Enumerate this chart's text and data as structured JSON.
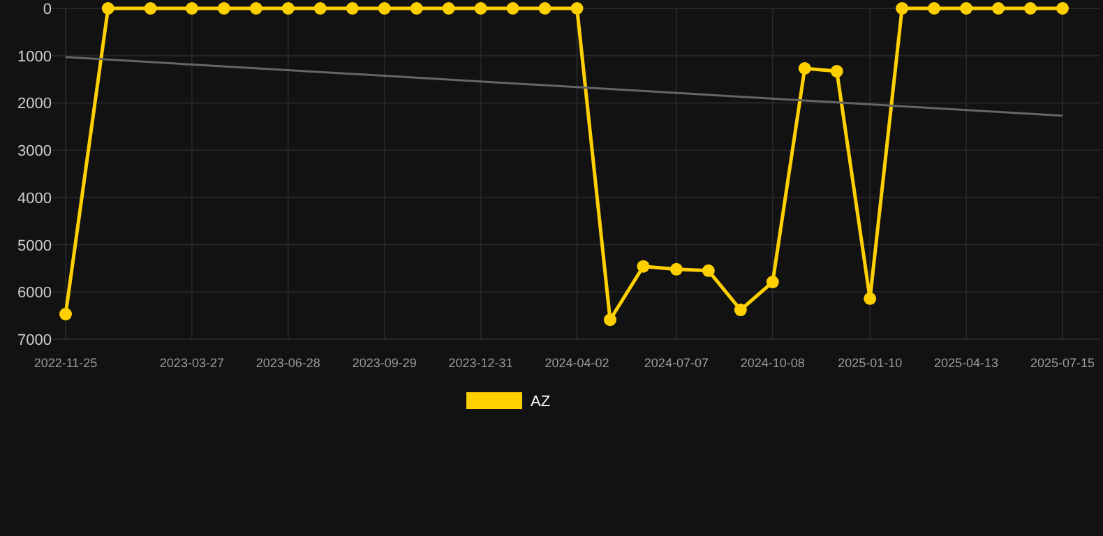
{
  "chart_data": {
    "type": "line",
    "x": [
      "2022-11-25",
      "2023-01-05",
      "2023-02-15",
      "2023-03-27",
      "2023-04-27",
      "2023-05-28",
      "2023-06-28",
      "2023-07-29",
      "2023-08-29",
      "2023-09-29",
      "2023-10-30",
      "2023-11-30",
      "2023-12-31",
      "2024-01-31",
      "2024-03-02",
      "2024-04-02",
      "2024-05-04",
      "2024-06-05",
      "2024-07-07",
      "2024-08-07",
      "2024-09-07",
      "2024-10-08",
      "2024-11-08",
      "2024-12-09",
      "2025-01-10",
      "2025-02-10",
      "2025-03-13",
      "2025-04-13",
      "2025-05-14",
      "2025-06-14",
      "2025-07-15"
    ],
    "series": [
      {
        "name": "AZ",
        "color": "#ffd000",
        "marker": "circle",
        "values": [
          6470,
          0,
          0,
          0,
          0,
          0,
          0,
          0,
          0,
          0,
          0,
          0,
          0,
          0,
          0,
          0,
          6590,
          5460,
          5520,
          5550,
          6380,
          5790,
          1270,
          1330,
          6140,
          0,
          0,
          0,
          0,
          0,
          0
        ]
      },
      {
        "color": "#666666",
        "marker": "none",
        "x": [
          "2022-11-25",
          "2025-07-15"
        ],
        "values": [
          1030,
          2270
        ]
      }
    ],
    "xlim": [
      "2022-11-25",
      "2025-07-15"
    ],
    "xticks": [
      "2022-11-25",
      "2023-03-27",
      "2023-06-28",
      "2023-09-29",
      "2023-12-31",
      "2024-04-02",
      "2024-07-07",
      "2024-10-08",
      "2025-01-10",
      "2025-04-13",
      "2025-07-15"
    ],
    "ylim": [
      7000,
      0
    ],
    "yticks": [
      0,
      1000,
      2000,
      3000,
      4000,
      5000,
      6000,
      7000
    ],
    "grid": true,
    "legend": "bottom"
  }
}
